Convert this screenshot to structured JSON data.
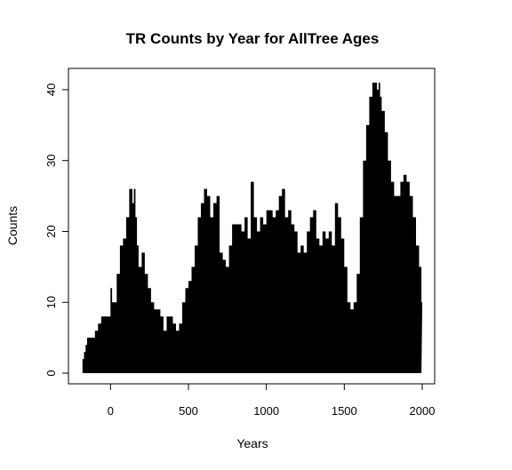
{
  "chart_data": {
    "type": "area",
    "title": "TR Counts by Year for AllTree Ages",
    "xlabel": "Years",
    "ylabel": "Counts",
    "xlim": [
      -270,
      2080
    ],
    "ylim": [
      -1.5,
      43
    ],
    "xticks": [
      "0",
      "500",
      "1000",
      "1500",
      "2000"
    ],
    "yticks": [
      "0",
      "10",
      "20",
      "30",
      "40"
    ],
    "fill_color": "#000000",
    "grid": false,
    "legend": "none",
    "x": [
      -190,
      -180,
      -170,
      -160,
      -150,
      -140,
      -120,
      -100,
      -80,
      -60,
      -40,
      -20,
      0,
      10,
      20,
      40,
      60,
      80,
      100,
      120,
      140,
      150,
      160,
      170,
      180,
      200,
      220,
      240,
      260,
      280,
      300,
      320,
      340,
      360,
      380,
      400,
      420,
      440,
      460,
      480,
      500,
      520,
      540,
      560,
      580,
      600,
      620,
      640,
      660,
      680,
      700,
      720,
      740,
      760,
      780,
      800,
      820,
      840,
      860,
      880,
      900,
      920,
      940,
      960,
      980,
      1000,
      1020,
      1040,
      1060,
      1080,
      1100,
      1120,
      1140,
      1160,
      1180,
      1200,
      1220,
      1240,
      1260,
      1280,
      1300,
      1320,
      1340,
      1360,
      1380,
      1400,
      1420,
      1440,
      1460,
      1480,
      1500,
      1520,
      1540,
      1560,
      1580,
      1600,
      1620,
      1640,
      1660,
      1680,
      1700,
      1710,
      1720,
      1730,
      1740,
      1760,
      1780,
      1800,
      1820,
      1840,
      1860,
      1880,
      1900,
      1920,
      1940,
      1960,
      1980,
      1995
    ],
    "counts": [
      0,
      2,
      3,
      4,
      5,
      5,
      5,
      6,
      7,
      8,
      8,
      8,
      12,
      10,
      10,
      14,
      18,
      19,
      22,
      26,
      24,
      26,
      22,
      18,
      15,
      17,
      14,
      12,
      10,
      9,
      9,
      8,
      6,
      8,
      8,
      7,
      6,
      7,
      10,
      12,
      13,
      15,
      18,
      22,
      24,
      26,
      25,
      22,
      24,
      25,
      17,
      16,
      15,
      18,
      21,
      21,
      21,
      20,
      22,
      19,
      27,
      22,
      20,
      22,
      21,
      23,
      23,
      22,
      23,
      25,
      26,
      22,
      23,
      21,
      20,
      17,
      18,
      17,
      20,
      22,
      23,
      19,
      18,
      20,
      19,
      20,
      18,
      24,
      22,
      19,
      15,
      10,
      9,
      10,
      14,
      22,
      30,
      35,
      39,
      41,
      41,
      40,
      41,
      39,
      37,
      34,
      30,
      27,
      25,
      25,
      27,
      28,
      27,
      25,
      22,
      18,
      15,
      10
    ]
  }
}
